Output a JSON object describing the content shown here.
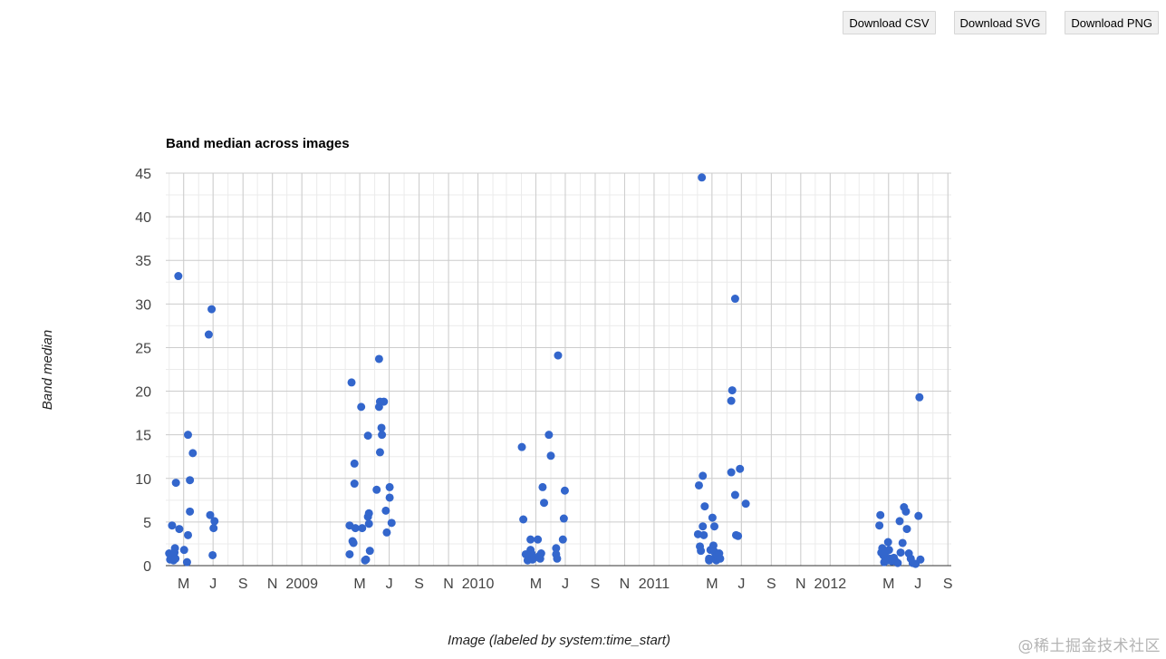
{
  "toolbar": {
    "csv_label": "Download CSV",
    "svg_label": "Download SVG",
    "png_label": "Download PNG"
  },
  "watermark": "@稀土掘金技术社区",
  "colors": {
    "point": "#3366cc",
    "grid_major": "#cccccc",
    "grid_minor": "#ebebeb",
    "axis": "#333333"
  },
  "chart_data": {
    "type": "scatter",
    "title": "Band median across images",
    "xlabel": "Image (labeled by system:time_start)",
    "ylabel": "Band median",
    "ylim": [
      0,
      45
    ],
    "yticks": [
      0,
      5,
      10,
      15,
      20,
      25,
      30,
      35,
      40,
      45
    ],
    "xlim": [
      "2008-03-25",
      "2012-09-08"
    ],
    "x_ticks": [
      {
        "label": "M",
        "date": "2008-05-01"
      },
      {
        "label": "J",
        "date": "2008-07-01"
      },
      {
        "label": "S",
        "date": "2008-09-01"
      },
      {
        "label": "N",
        "date": "2008-11-01"
      },
      {
        "label": "2009",
        "date": "2009-01-01"
      },
      {
        "label": "M",
        "date": "2009-05-01"
      },
      {
        "label": "J",
        "date": "2009-07-01"
      },
      {
        "label": "S",
        "date": "2009-09-01"
      },
      {
        "label": "N",
        "date": "2009-11-01"
      },
      {
        "label": "2010",
        "date": "2010-01-01"
      },
      {
        "label": "M",
        "date": "2010-05-01"
      },
      {
        "label": "J",
        "date": "2010-07-01"
      },
      {
        "label": "S",
        "date": "2010-09-01"
      },
      {
        "label": "N",
        "date": "2010-11-01"
      },
      {
        "label": "2011",
        "date": "2011-01-01"
      },
      {
        "label": "M",
        "date": "2011-05-01"
      },
      {
        "label": "J",
        "date": "2011-07-01"
      },
      {
        "label": "S",
        "date": "2011-09-01"
      },
      {
        "label": "N",
        "date": "2011-11-01"
      },
      {
        "label": "2012",
        "date": "2012-01-01"
      },
      {
        "label": "M",
        "date": "2012-05-01"
      },
      {
        "label": "J",
        "date": "2012-07-01"
      },
      {
        "label": "S",
        "date": "2012-09-01"
      }
    ],
    "grid": true,
    "legend": "none",
    "points": [
      [
        "2008-04-01",
        1.4
      ],
      [
        "2008-04-03",
        0.7
      ],
      [
        "2008-04-05",
        1.2
      ],
      [
        "2008-04-07",
        4.6
      ],
      [
        "2008-04-08",
        0.7
      ],
      [
        "2008-04-10",
        0.6
      ],
      [
        "2008-04-12",
        1.5
      ],
      [
        "2008-04-13",
        2.0
      ],
      [
        "2008-04-14",
        0.8
      ],
      [
        "2008-04-15",
        9.5
      ],
      [
        "2008-04-20",
        33.2
      ],
      [
        "2008-04-22",
        4.2
      ],
      [
        "2008-05-02",
        1.8
      ],
      [
        "2008-05-08",
        0.4
      ],
      [
        "2008-05-10",
        15.0
      ],
      [
        "2008-05-10",
        3.5
      ],
      [
        "2008-05-14",
        9.8
      ],
      [
        "2008-05-14",
        6.2
      ],
      [
        "2008-05-20",
        12.9
      ],
      [
        "2008-06-22",
        26.5
      ],
      [
        "2008-06-25",
        5.8
      ],
      [
        "2008-06-28",
        29.4
      ],
      [
        "2008-06-30",
        1.2
      ],
      [
        "2008-07-02",
        4.3
      ],
      [
        "2008-07-04",
        5.1
      ],
      [
        "2009-04-10",
        4.6
      ],
      [
        "2009-04-10",
        1.3
      ],
      [
        "2009-04-14",
        21.0
      ],
      [
        "2009-04-16",
        2.8
      ],
      [
        "2009-04-18",
        2.6
      ],
      [
        "2009-04-20",
        11.7
      ],
      [
        "2009-04-20",
        9.4
      ],
      [
        "2009-04-22",
        4.3
      ],
      [
        "2009-05-04",
        18.2
      ],
      [
        "2009-05-06",
        4.3
      ],
      [
        "2009-05-12",
        0.6
      ],
      [
        "2009-05-14",
        0.7
      ],
      [
        "2009-05-18",
        5.6
      ],
      [
        "2009-05-18",
        14.9
      ],
      [
        "2009-05-20",
        6.0
      ],
      [
        "2009-05-20",
        4.8
      ],
      [
        "2009-05-22",
        1.7
      ],
      [
        "2009-06-05",
        8.7
      ],
      [
        "2009-06-10",
        23.7
      ],
      [
        "2009-06-10",
        18.2
      ],
      [
        "2009-06-12",
        18.8
      ],
      [
        "2009-06-12",
        13.0
      ],
      [
        "2009-06-15",
        15.8
      ],
      [
        "2009-06-16",
        15.0
      ],
      [
        "2009-06-20",
        18.8
      ],
      [
        "2009-06-24",
        6.3
      ],
      [
        "2009-06-26",
        3.8
      ],
      [
        "2009-07-02",
        9.0
      ],
      [
        "2009-07-02",
        7.8
      ],
      [
        "2009-07-06",
        4.9
      ],
      [
        "2010-04-02",
        13.6
      ],
      [
        "2010-04-05",
        5.3
      ],
      [
        "2010-04-10",
        1.3
      ],
      [
        "2010-04-14",
        0.6
      ],
      [
        "2010-04-18",
        1.1
      ],
      [
        "2010-04-20",
        3.0
      ],
      [
        "2010-04-20",
        1.8
      ],
      [
        "2010-04-22",
        1.4
      ],
      [
        "2010-04-24",
        0.7
      ],
      [
        "2010-04-28",
        0.9
      ],
      [
        "2010-05-05",
        3.0
      ],
      [
        "2010-05-08",
        1.1
      ],
      [
        "2010-05-10",
        0.8
      ],
      [
        "2010-05-12",
        1.4
      ],
      [
        "2010-05-15",
        9.0
      ],
      [
        "2010-05-18",
        7.2
      ],
      [
        "2010-05-28",
        15.0
      ],
      [
        "2010-06-01",
        12.6
      ],
      [
        "2010-06-12",
        2.0
      ],
      [
        "2010-06-12",
        1.3
      ],
      [
        "2010-06-14",
        0.8
      ],
      [
        "2010-06-16",
        24.1
      ],
      [
        "2010-06-26",
        3.0
      ],
      [
        "2010-06-28",
        5.4
      ],
      [
        "2010-06-30",
        8.6
      ],
      [
        "2011-04-02",
        3.6
      ],
      [
        "2011-04-04",
        9.2
      ],
      [
        "2011-04-06",
        2.2
      ],
      [
        "2011-04-08",
        1.7
      ],
      [
        "2011-04-10",
        44.5
      ],
      [
        "2011-04-12",
        4.5
      ],
      [
        "2011-04-12",
        10.3
      ],
      [
        "2011-04-14",
        3.5
      ],
      [
        "2011-04-16",
        6.8
      ],
      [
        "2011-04-25",
        0.6
      ],
      [
        "2011-04-25",
        0.8
      ],
      [
        "2011-04-28",
        1.8
      ],
      [
        "2011-05-02",
        5.5
      ],
      [
        "2011-05-04",
        2.3
      ],
      [
        "2011-05-06",
        1.6
      ],
      [
        "2011-05-06",
        4.5
      ],
      [
        "2011-05-08",
        1.0
      ],
      [
        "2011-05-10",
        0.6
      ],
      [
        "2011-05-12",
        1.2
      ],
      [
        "2011-05-14",
        0.9
      ],
      [
        "2011-05-16",
        1.4
      ],
      [
        "2011-05-18",
        0.8
      ],
      [
        "2011-06-10",
        10.7
      ],
      [
        "2011-06-10",
        18.9
      ],
      [
        "2011-06-12",
        20.1
      ],
      [
        "2011-06-18",
        30.6
      ],
      [
        "2011-06-18",
        8.1
      ],
      [
        "2011-06-20",
        3.5
      ],
      [
        "2011-06-24",
        3.4
      ],
      [
        "2011-06-28",
        11.1
      ],
      [
        "2011-07-10",
        7.1
      ],
      [
        "2012-04-12",
        4.6
      ],
      [
        "2012-04-14",
        5.8
      ],
      [
        "2012-04-16",
        1.5
      ],
      [
        "2012-04-18",
        2.0
      ],
      [
        "2012-04-20",
        1.2
      ],
      [
        "2012-04-22",
        0.4
      ],
      [
        "2012-04-24",
        0.9
      ],
      [
        "2012-04-26",
        1.6
      ],
      [
        "2012-04-28",
        0.6
      ],
      [
        "2012-04-30",
        2.7
      ],
      [
        "2012-05-02",
        1.8
      ],
      [
        "2012-05-04",
        0.8
      ],
      [
        "2012-05-08",
        0.5
      ],
      [
        "2012-05-12",
        0.9
      ],
      [
        "2012-05-14",
        0.6
      ],
      [
        "2012-05-20",
        0.3
      ],
      [
        "2012-05-24",
        5.1
      ],
      [
        "2012-05-26",
        1.5
      ],
      [
        "2012-05-30",
        2.6
      ],
      [
        "2012-06-02",
        6.7
      ],
      [
        "2012-06-06",
        6.2
      ],
      [
        "2012-06-08",
        4.2
      ],
      [
        "2012-06-12",
        1.4
      ],
      [
        "2012-06-16",
        0.8
      ],
      [
        "2012-06-20",
        0.3
      ],
      [
        "2012-06-26",
        0.2
      ],
      [
        "2012-07-02",
        5.7
      ],
      [
        "2012-07-04",
        19.3
      ],
      [
        "2012-07-06",
        0.7
      ]
    ]
  }
}
